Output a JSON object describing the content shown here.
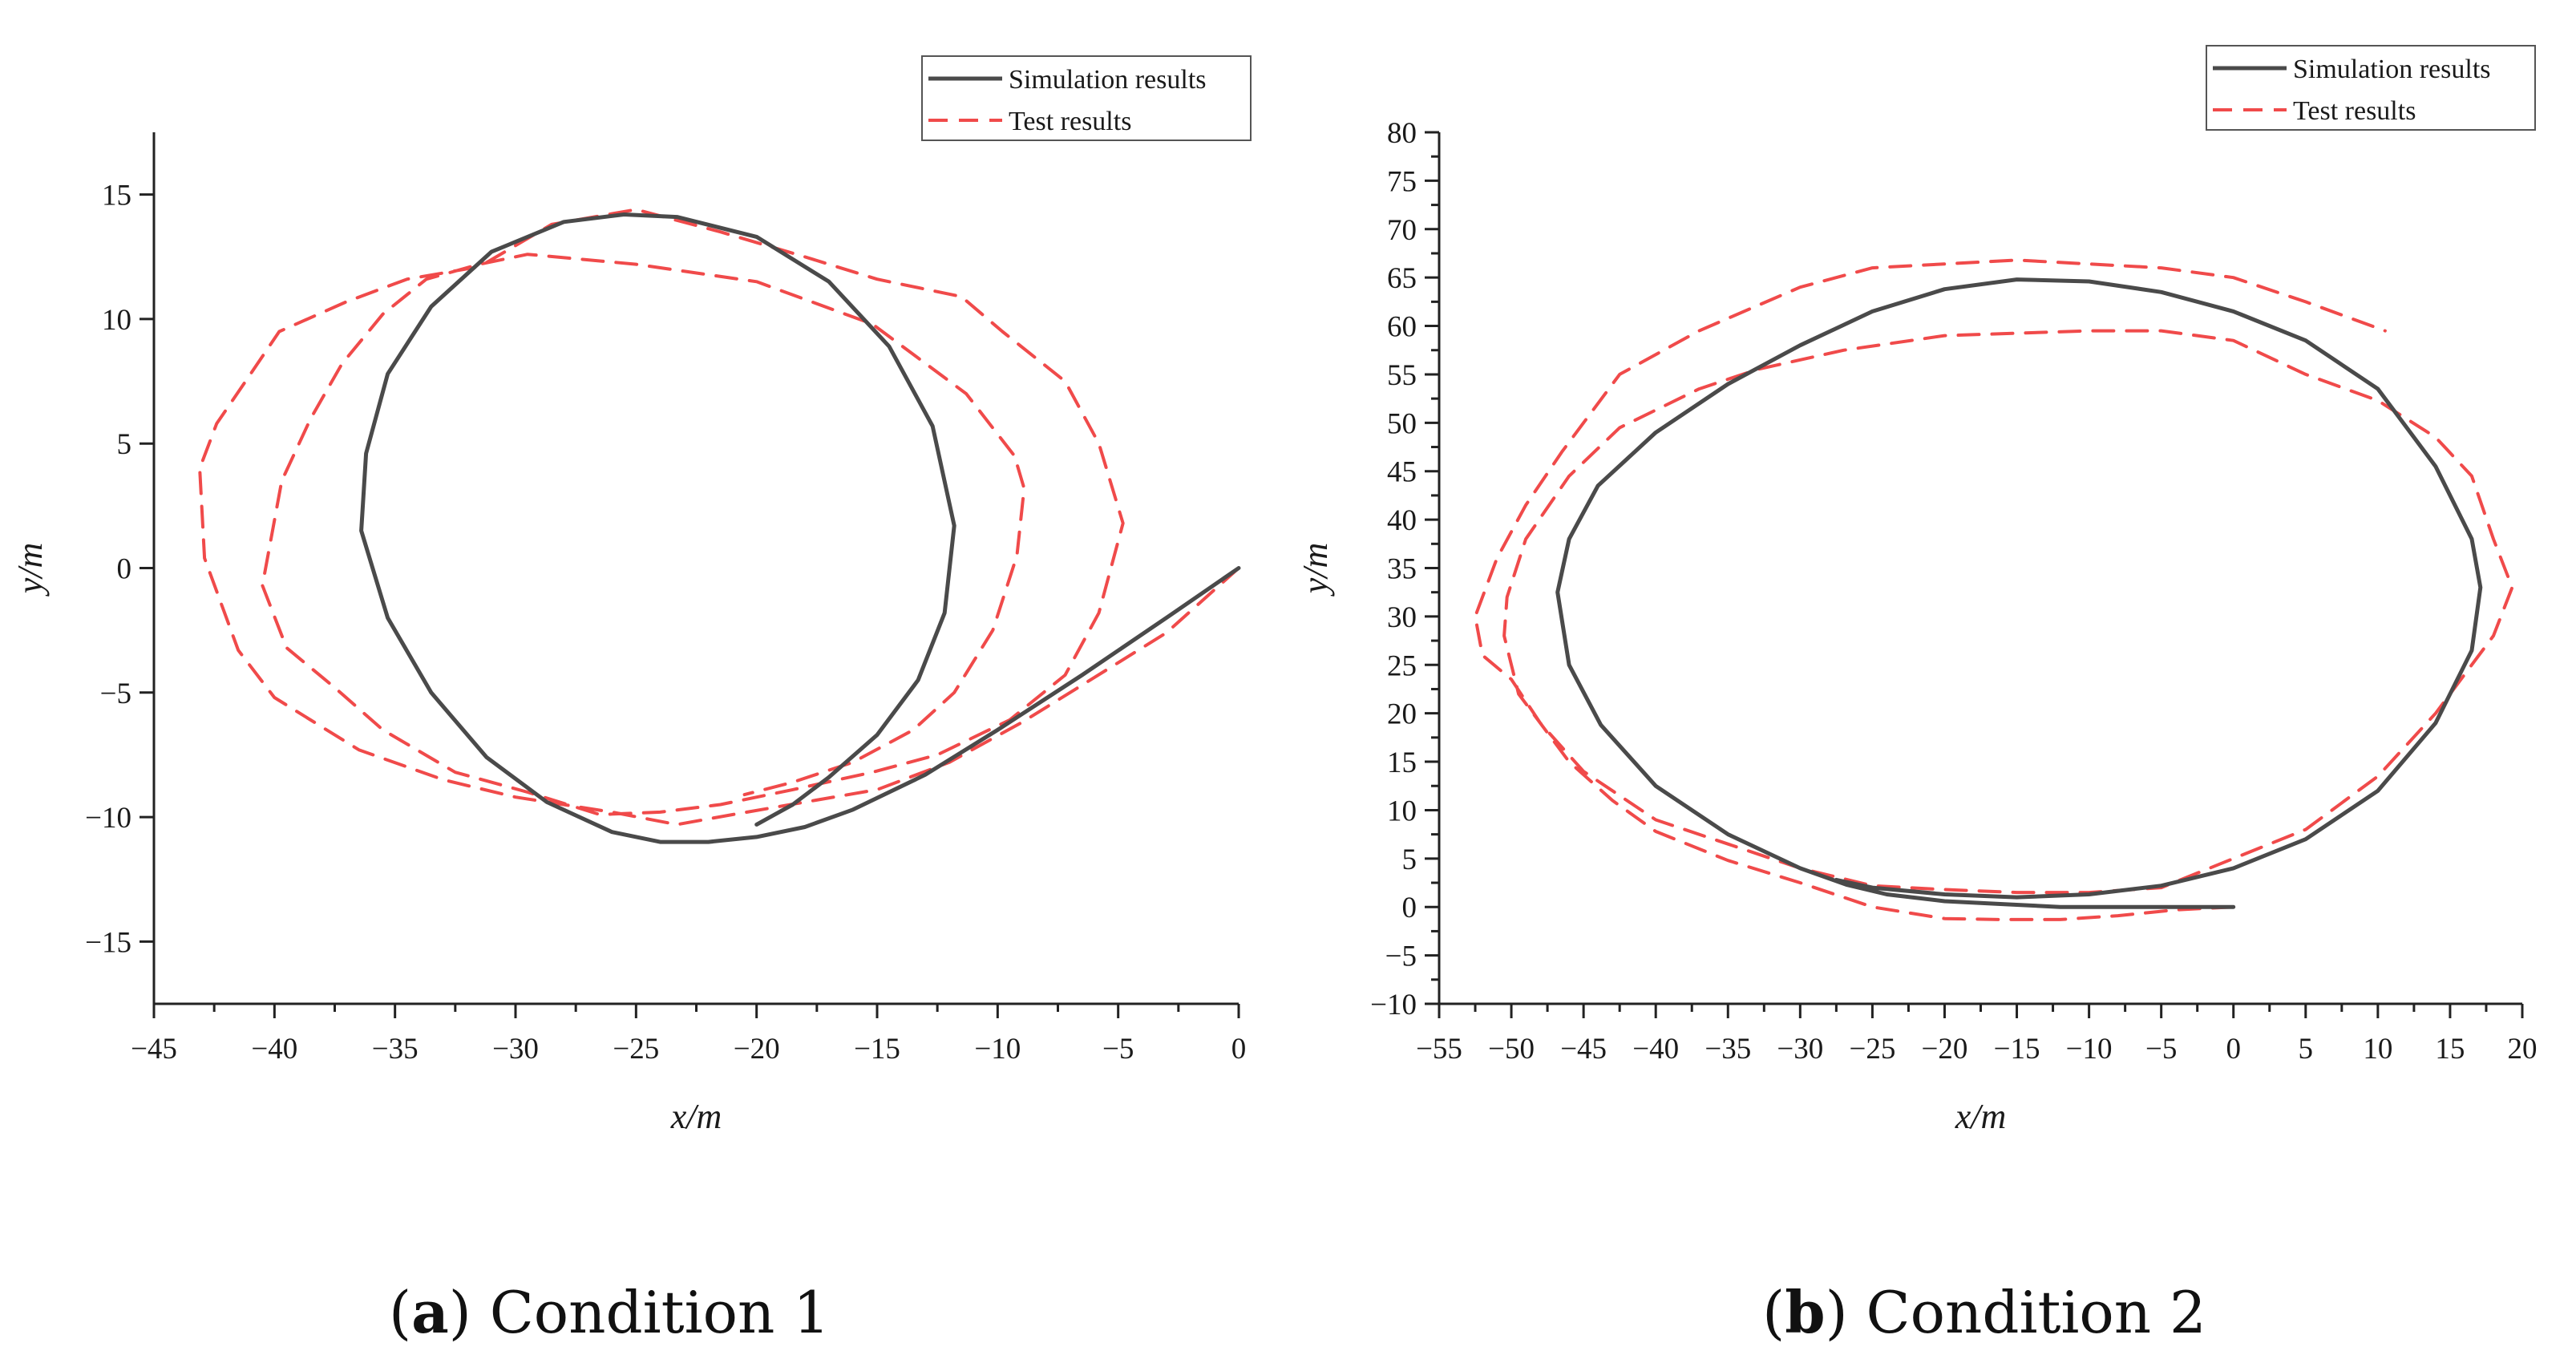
{
  "chart_data": [
    {
      "type": "line",
      "panel_label": "a",
      "caption": "Condition 1",
      "xlabel": "x/m",
      "ylabel": "y/m",
      "xlim": [
        -45,
        0
      ],
      "ylim": [
        -17.5,
        17.5
      ],
      "xticks": [
        -45,
        -40,
        -35,
        -30,
        -25,
        -20,
        -15,
        -10,
        -5,
        0
      ],
      "yticks": [
        -15,
        -10,
        -5,
        0,
        5,
        10,
        15
      ],
      "xtick_labels": [
        "−45",
        "−40",
        "−35",
        "−30",
        "−25",
        "−20",
        "−15",
        "−10",
        "−5",
        "0"
      ],
      "ytick_labels": [
        "−15",
        "−10",
        "−5",
        "0",
        "5",
        "10",
        "15"
      ],
      "grid": false,
      "legend_position": "top-right",
      "series": [
        {
          "name": "Simulation results",
          "style": "solid",
          "color": "#4a4a4a",
          "points": [
            [
              0,
              0
            ],
            [
              -3,
              -2
            ],
            [
              -6.5,
              -4.3
            ],
            [
              -10,
              -6.5
            ],
            [
              -13,
              -8.3
            ],
            [
              -16,
              -9.7
            ],
            [
              -18,
              -10.4
            ],
            [
              -20,
              -10.8
            ],
            [
              -22,
              -11.0
            ],
            [
              -24,
              -11.0
            ],
            [
              -26,
              -10.6
            ],
            [
              -28.7,
              -9.4
            ],
            [
              -31.2,
              -7.6
            ],
            [
              -33.5,
              -5.0
            ],
            [
              -35.3,
              -2.0
            ],
            [
              -36.4,
              1.5
            ],
            [
              -36.2,
              4.6
            ],
            [
              -35.3,
              7.8
            ],
            [
              -33.5,
              10.5
            ],
            [
              -31.0,
              12.7
            ],
            [
              -28.0,
              13.9
            ],
            [
              -25.5,
              14.2
            ],
            [
              -23.3,
              14.1
            ],
            [
              -20.0,
              13.3
            ],
            [
              -17.0,
              11.5
            ],
            [
              -14.5,
              8.9
            ],
            [
              -12.7,
              5.7
            ],
            [
              -11.8,
              1.7
            ],
            [
              -12.2,
              -1.8
            ],
            [
              -13.3,
              -4.5
            ],
            [
              -15.0,
              -6.7
            ],
            [
              -17.0,
              -8.4
            ],
            [
              -18.5,
              -9.5
            ],
            [
              -20.0,
              -10.3
            ]
          ]
        },
        {
          "name": "Test results",
          "style": "dashed",
          "color": "#f04a4a",
          "points": [
            [
              0,
              0
            ],
            [
              -3,
              -2.6
            ],
            [
              -6,
              -4.4
            ],
            [
              -9,
              -6.2
            ],
            [
              -12,
              -7.8
            ],
            [
              -15,
              -8.9
            ],
            [
              -18,
              -9.4
            ],
            [
              -21,
              -9.9
            ],
            [
              -23.3,
              -10.3
            ],
            [
              -26,
              -9.8
            ],
            [
              -30,
              -9.2
            ],
            [
              -33,
              -8.5
            ],
            [
              -36.5,
              -7.3
            ],
            [
              -40,
              -5.2
            ],
            [
              -41.5,
              -3.3
            ],
            [
              -42.9,
              0.4
            ],
            [
              -43.1,
              4.0
            ],
            [
              -42.4,
              5.8
            ],
            [
              -41.2,
              7.5
            ],
            [
              -39.8,
              9.5
            ],
            [
              -37.0,
              10.7
            ],
            [
              -34.5,
              11.6
            ],
            [
              -31.5,
              12.1
            ],
            [
              -28.5,
              13.8
            ],
            [
              -25.0,
              14.4
            ],
            [
              -21.5,
              13.5
            ],
            [
              -18.0,
              12.5
            ],
            [
              -15.0,
              11.6
            ],
            [
              -11.5,
              10.9
            ],
            [
              -9.8,
              9.5
            ],
            [
              -7.2,
              7.5
            ],
            [
              -5.8,
              5.0
            ],
            [
              -4.8,
              1.8
            ],
            [
              -5.8,
              -1.8
            ],
            [
              -7.2,
              -4.3
            ],
            [
              -9.5,
              -6.1
            ],
            [
              -12.5,
              -7.5
            ],
            [
              -15.2,
              -8.2
            ],
            [
              -18.5,
              -8.9
            ],
            [
              -21.5,
              -9.5
            ],
            [
              -24.0,
              -9.8
            ],
            [
              -26.5,
              -9.9
            ],
            [
              -29.5,
              -9.0
            ],
            [
              -32.5,
              -8.2
            ],
            [
              -35.5,
              -6.5
            ],
            [
              -37.5,
              -4.8
            ],
            [
              -39.5,
              -3.2
            ],
            [
              -40.5,
              -0.7
            ],
            [
              -39.7,
              3.5
            ],
            [
              -38.5,
              6.0
            ],
            [
              -37.2,
              8.2
            ],
            [
              -35.5,
              10.2
            ],
            [
              -33.7,
              11.6
            ],
            [
              -31.5,
              12.2
            ],
            [
              -29.5,
              12.6
            ],
            [
              -25.0,
              12.2
            ],
            [
              -20.0,
              11.5
            ],
            [
              -15.2,
              9.8
            ],
            [
              -11.3,
              7.0
            ],
            [
              -9.3,
              4.5
            ],
            [
              -8.9,
              3.2
            ],
            [
              -9.2,
              0.5
            ],
            [
              -10.2,
              -2.5
            ],
            [
              -11.8,
              -5.0
            ],
            [
              -13.5,
              -6.5
            ],
            [
              -16.0,
              -7.8
            ],
            [
              -18.5,
              -8.6
            ],
            [
              -20.5,
              -9.1
            ]
          ]
        }
      ]
    },
    {
      "type": "line",
      "panel_label": "b",
      "caption": "Condition 2",
      "xlabel": "x/m",
      "ylabel": "y/m",
      "xlim": [
        -55,
        20
      ],
      "ylim": [
        -10,
        80
      ],
      "xticks": [
        -55,
        -50,
        -45,
        -40,
        -35,
        -30,
        -25,
        -20,
        -15,
        -10,
        -5,
        0,
        5,
        10,
        15,
        20
      ],
      "yticks": [
        -10,
        -5,
        0,
        5,
        10,
        15,
        20,
        25,
        30,
        35,
        40,
        45,
        50,
        55,
        60,
        65,
        70,
        75,
        80
      ],
      "xtick_labels": [
        "−55",
        "−50",
        "−45",
        "−40",
        "−35",
        "−30",
        "−25",
        "−20",
        "−15",
        "−10",
        "−5",
        "0",
        "5",
        "10",
        "15",
        "20"
      ],
      "ytick_labels": [
        "−10",
        "−5",
        "0",
        "5",
        "10",
        "15",
        "20",
        "25",
        "30",
        "35",
        "40",
        "45",
        "50",
        "55",
        "60",
        "65",
        "70",
        "75",
        "80"
      ],
      "grid": false,
      "legend_position": "top-right",
      "series": [
        {
          "name": "Simulation results",
          "style": "solid",
          "color": "#4a4a4a",
          "points": [
            [
              0,
              0
            ],
            [
              -4,
              0
            ],
            [
              -8,
              0
            ],
            [
              -12,
              0
            ],
            [
              -16,
              0.3
            ],
            [
              -20,
              0.6
            ],
            [
              -24,
              1.3
            ],
            [
              -26.8,
              2.3
            ],
            [
              -30,
              4.0
            ],
            [
              -35,
              7.5
            ],
            [
              -40,
              12.5
            ],
            [
              -43.8,
              18.8
            ],
            [
              -46,
              25.0
            ],
            [
              -46.8,
              32.5
            ],
            [
              -46,
              38.0
            ],
            [
              -44,
              43.5
            ],
            [
              -40,
              49.0
            ],
            [
              -35,
              54.0
            ],
            [
              -30,
              58.0
            ],
            [
              -25,
              61.5
            ],
            [
              -20,
              63.8
            ],
            [
              -15,
              64.8
            ],
            [
              -10,
              64.6
            ],
            [
              -5,
              63.5
            ],
            [
              0,
              61.5
            ],
            [
              5,
              58.5
            ],
            [
              10,
              53.5
            ],
            [
              14,
              45.5
            ],
            [
              16.5,
              38.0
            ],
            [
              17.1,
              33.0
            ],
            [
              16.5,
              26.5
            ],
            [
              14,
              19.0
            ],
            [
              10,
              12.0
            ],
            [
              5,
              7.0
            ],
            [
              0,
              4.0
            ],
            [
              -5,
              2.2
            ],
            [
              -10,
              1.3
            ],
            [
              -15,
              1.0
            ],
            [
              -20,
              1.3
            ],
            [
              -25,
              2.0
            ],
            [
              -27.5,
              2.8
            ]
          ]
        },
        {
          "name": "Test results",
          "style": "dashed",
          "color": "#f04a4a",
          "points": [
            [
              0,
              0
            ],
            [
              -4,
              -0.3
            ],
            [
              -8,
              -0.9
            ],
            [
              -12,
              -1.3
            ],
            [
              -16,
              -1.3
            ],
            [
              -20,
              -1.2
            ],
            [
              -25,
              0
            ],
            [
              -30,
              2.5
            ],
            [
              -35,
              4.8
            ],
            [
              -40,
              7.8
            ],
            [
              -43,
              11.0
            ],
            [
              -46,
              15.0
            ],
            [
              -49.5,
              22.0
            ],
            [
              -50.5,
              28.0
            ],
            [
              -50.3,
              32.0
            ],
            [
              -49,
              38.0
            ],
            [
              -46,
              44.5
            ],
            [
              -42.5,
              49.5
            ],
            [
              -37,
              53.5
            ],
            [
              -33,
              55.5
            ],
            [
              -27,
              57.5
            ],
            [
              -20,
              59.0
            ],
            [
              -10,
              59.5
            ],
            [
              -5,
              59.5
            ],
            [
              0,
              58.5
            ],
            [
              5,
              55.0
            ],
            [
              10,
              52.3
            ],
            [
              14,
              48.5
            ],
            [
              16.5,
              44.5
            ],
            [
              18,
              38.0
            ],
            [
              19.3,
              33.0
            ],
            [
              18,
              28.0
            ],
            [
              14,
              20.0
            ],
            [
              10,
              13.5
            ],
            [
              5,
              8.0
            ],
            [
              0,
              5.0
            ],
            [
              -5,
              2.0
            ],
            [
              -10,
              1.5
            ],
            [
              -15,
              1.5
            ],
            [
              -20,
              1.8
            ],
            [
              -25,
              2.2
            ],
            [
              -30,
              4.0
            ],
            [
              -35,
              6.5
            ],
            [
              -40,
              9.0
            ],
            [
              -45,
              14.0
            ],
            [
              -48,
              19.0
            ],
            [
              -50,
              23.5
            ],
            [
              -52,
              26.0
            ],
            [
              -52.5,
              30.0
            ],
            [
              -51,
              36.0
            ],
            [
              -49,
              41.5
            ],
            [
              -46.5,
              47.0
            ],
            [
              -42.5,
              55.0
            ],
            [
              -37,
              59.5
            ],
            [
              -30,
              64.0
            ],
            [
              -25,
              66.0
            ],
            [
              -15,
              66.8
            ],
            [
              -5,
              66.0
            ],
            [
              0,
              65.0
            ],
            [
              5,
              62.5
            ],
            [
              10.5,
              59.5
            ]
          ]
        }
      ]
    }
  ]
}
